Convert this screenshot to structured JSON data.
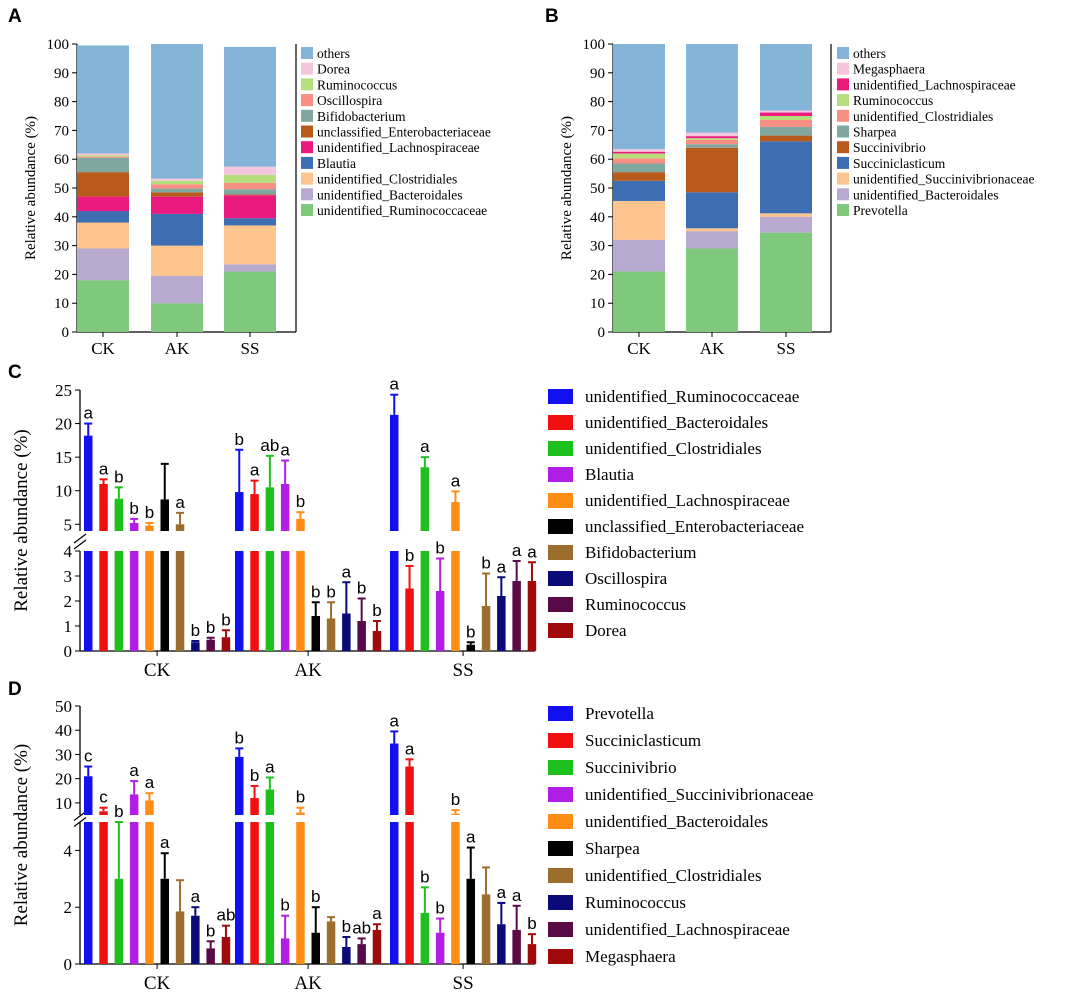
{
  "chart_data": [
    {
      "panel": "A",
      "type": "bar",
      "stacked": true,
      "categories": [
        "CK",
        "AK",
        "SS"
      ],
      "ylabel": "Relative abundance (%)",
      "ylim": [
        0,
        100
      ],
      "yticks": [
        0,
        10,
        20,
        30,
        40,
        50,
        60,
        70,
        80,
        90,
        100
      ],
      "legend_position": "right",
      "series": [
        {
          "name": "unidentified_Ruminococcaceae",
          "color": "#7ec97c",
          "values": [
            18,
            10,
            21
          ]
        },
        {
          "name": "unidentified_Bacteroidales",
          "color": "#b8a9d0",
          "values": [
            11,
            9.5,
            2.5
          ]
        },
        {
          "name": "unidentified_Clostridiales",
          "color": "#fdc48e",
          "values": [
            9,
            10.5,
            13.5
          ]
        },
        {
          "name": "Blautia",
          "color": "#3d6db3",
          "values": [
            4,
            11,
            2.5
          ]
        },
        {
          "name": "unidentified_Lachnospiraceae",
          "color": "#ea1a7f",
          "values": [
            5,
            6,
            8
          ]
        },
        {
          "name": "unclassified_Enterobacteriaceae",
          "color": "#b85a1c",
          "values": [
            8.5,
            1.5,
            0.3
          ]
        },
        {
          "name": "Bifidobacterium",
          "color": "#80a8a0",
          "values": [
            5,
            1.3,
            1.8
          ]
        },
        {
          "name": "Oscillospira",
          "color": "#f98e82",
          "values": [
            0.4,
            1.5,
            2.2
          ]
        },
        {
          "name": "Ruminococcus",
          "color": "#b7de7c",
          "values": [
            0.5,
            1.2,
            2.8
          ]
        },
        {
          "name": "Dorea",
          "color": "#f5c5dd",
          "values": [
            0.6,
            0.8,
            2.8
          ]
        },
        {
          "name": "others",
          "color": "#84b4d8",
          "values": [
            37.5,
            46.7,
            41.6
          ]
        }
      ]
    },
    {
      "panel": "B",
      "type": "bar",
      "stacked": true,
      "categories": [
        "CK",
        "AK",
        "SS"
      ],
      "ylabel": "Relative abundance (%)",
      "ylim": [
        0,
        100
      ],
      "yticks": [
        0,
        10,
        20,
        30,
        40,
        50,
        60,
        70,
        80,
        90,
        100
      ],
      "legend_position": "right",
      "series": [
        {
          "name": "Prevotella",
          "color": "#7ec97c",
          "values": [
            21,
            29,
            34.5
          ]
        },
        {
          "name": "unidentified_Bacteroidales",
          "color": "#b8a9d0",
          "values": [
            11,
            6,
            5.5
          ]
        },
        {
          "name": "unidentified_Succinivibrionaceae",
          "color": "#fdc48e",
          "values": [
            13.5,
            1,
            1.2
          ]
        },
        {
          "name": "Succiniclasticum",
          "color": "#3d6db3",
          "values": [
            7,
            12.5,
            25
          ]
        },
        {
          "name": "Succinivibrio",
          "color": "#b85a1c",
          "values": [
            3,
            15.5,
            2
          ]
        },
        {
          "name": "Sharpea",
          "color": "#80a8a0",
          "values": [
            3,
            1.2,
            3
          ]
        },
        {
          "name": "unidentified_Clostridiales",
          "color": "#f98e82",
          "values": [
            1.8,
            1.5,
            2.4
          ]
        },
        {
          "name": "Ruminococcus",
          "color": "#b7de7c",
          "values": [
            1.7,
            0.6,
            1.4
          ]
        },
        {
          "name": "unidentified_Lachnospiraceae",
          "color": "#ea1a7f",
          "values": [
            0.6,
            0.7,
            1.2
          ]
        },
        {
          "name": "Megasphaera",
          "color": "#f5c5dd",
          "values": [
            0.9,
            1.2,
            0.7
          ]
        },
        {
          "name": "others",
          "color": "#84b4d8",
          "values": [
            36.5,
            30.8,
            23.1
          ]
        }
      ]
    },
    {
      "panel": "C",
      "type": "bar",
      "broken_axis": true,
      "categories": [
        "CK",
        "AK",
        "SS"
      ],
      "ylabel": "Relative abundance (%)",
      "ylim_lower": [
        0,
        4
      ],
      "ylim_upper": [
        4,
        25
      ],
      "yticks_lower": [
        0,
        1,
        2,
        3,
        4
      ],
      "yticks_upper": [
        5,
        10,
        15,
        20,
        25
      ],
      "legend_position": "right",
      "series": [
        {
          "name": "unidentified_Ruminococcaceae",
          "color": "#1010f0",
          "values": [
            18.2,
            9.8,
            21.3
          ],
          "errors": [
            1.8,
            6.3,
            3.0
          ],
          "letters": [
            "a",
            "b",
            "a"
          ]
        },
        {
          "name": "unidentified_Bacteroidales",
          "color": "#f01010",
          "values": [
            11.0,
            9.5,
            2.5
          ],
          "errors": [
            0.7,
            2.0,
            0.9
          ],
          "letters": [
            "a",
            "a",
            "b"
          ]
        },
        {
          "name": "unidentified_Clostridiales",
          "color": "#1ec01e",
          "values": [
            8.8,
            10.5,
            13.5
          ],
          "errors": [
            1.7,
            4.7,
            1.5
          ],
          "letters": [
            "b",
            "ab",
            "a"
          ]
        },
        {
          "name": "Blautia",
          "color": "#b21ee6",
          "values": [
            5.2,
            11.0,
            2.4
          ],
          "errors": [
            0.6,
            3.5,
            1.3
          ],
          "letters": [
            "b",
            "a",
            "b"
          ]
        },
        {
          "name": "unidentified_Lachnospiraceae",
          "color": "#ff8c14",
          "values": [
            4.8,
            5.8,
            8.3
          ],
          "errors": [
            0.4,
            1.0,
            1.6
          ],
          "letters": [
            "b",
            "b",
            "a"
          ]
        },
        {
          "name": "unclassified_Enterobacteriaceae",
          "color": "#000000",
          "values": [
            8.7,
            1.4,
            0.25
          ],
          "errors": [
            5.3,
            0.55,
            0.1
          ],
          "letters": [
            "",
            "b",
            "b"
          ]
        },
        {
          "name": "Bifidobacterium",
          "color": "#9b6e2d",
          "values": [
            5.0,
            1.3,
            1.8
          ],
          "errors": [
            1.7,
            0.65,
            1.3
          ],
          "letters": [
            "a",
            "b",
            "b"
          ]
        },
        {
          "name": "Oscillospira",
          "color": "#0a0a78",
          "values": [
            0.35,
            1.5,
            2.2
          ],
          "errors": [
            0.05,
            1.25,
            0.75
          ],
          "letters": [
            "b",
            "a",
            "a"
          ]
        },
        {
          "name": "Ruminococcus",
          "color": "#5a0a46",
          "values": [
            0.45,
            1.2,
            2.8
          ],
          "errors": [
            0.08,
            0.9,
            0.8
          ],
          "letters": [
            "b",
            "b",
            "a"
          ]
        },
        {
          "name": "Dorea",
          "color": "#a00a0a",
          "values": [
            0.55,
            0.8,
            2.8
          ],
          "errors": [
            0.28,
            0.4,
            0.75
          ],
          "letters": [
            "b",
            "b",
            "a"
          ]
        }
      ]
    },
    {
      "panel": "D",
      "type": "bar",
      "broken_axis": true,
      "categories": [
        "CK",
        "AK",
        "SS"
      ],
      "ylabel": "Relative abundance (%)",
      "ylim_lower": [
        0,
        5
      ],
      "ylim_upper": [
        5,
        50
      ],
      "yticks_lower": [
        0,
        2,
        4
      ],
      "yticks_upper": [
        10,
        20,
        30,
        40,
        50
      ],
      "legend_position": "right",
      "series": [
        {
          "name": "Prevotella",
          "color": "#1010f0",
          "values": [
            21.0,
            29.0,
            34.5
          ],
          "errors": [
            4.0,
            3.5,
            5.0
          ],
          "letters": [
            "c",
            "b",
            "a"
          ]
        },
        {
          "name": "Succiniclasticum",
          "color": "#f01010",
          "values": [
            6.5,
            12.0,
            25.0
          ],
          "errors": [
            1.5,
            5.0,
            3.0
          ],
          "letters": [
            "c",
            "b",
            "a"
          ]
        },
        {
          "name": "Succinivibrio",
          "color": "#1ec01e",
          "values": [
            3.0,
            15.5,
            1.8
          ],
          "errors": [
            2.0,
            5.0,
            0.9
          ],
          "letters": [
            "b",
            "a",
            "b"
          ]
        },
        {
          "name": "unidentified_Succinivibrionaceae",
          "color": "#b21ee6",
          "values": [
            13.5,
            0.9,
            1.1
          ],
          "errors": [
            5.5,
            0.8,
            0.5
          ],
          "letters": [
            "a",
            "b",
            "b"
          ]
        },
        {
          "name": "unidentified_Bacteroidales",
          "color": "#ff8c14",
          "values": [
            11.0,
            6.0,
            5.5
          ],
          "errors": [
            3.0,
            2.0,
            1.5
          ],
          "letters": [
            "a",
            "b",
            "b"
          ]
        },
        {
          "name": "Sharpea",
          "color": "#000000",
          "values": [
            3.0,
            1.1,
            3.0
          ],
          "errors": [
            0.9,
            0.9,
            1.1
          ],
          "letters": [
            "a",
            "b",
            "a"
          ]
        },
        {
          "name": "unidentified_Clostridiales",
          "color": "#9b6e2d",
          "values": [
            1.85,
            1.5,
            2.45
          ],
          "errors": [
            1.1,
            0.15,
            0.95
          ],
          "letters": [
            "",
            "",
            ""
          ]
        },
        {
          "name": "Ruminococcus",
          "color": "#0a0a78",
          "values": [
            1.7,
            0.6,
            1.4
          ],
          "errors": [
            0.3,
            0.35,
            0.75
          ],
          "letters": [
            "a",
            "b",
            "a"
          ]
        },
        {
          "name": "unidentified_Lachnospiraceae",
          "color": "#5a0a46",
          "values": [
            0.55,
            0.7,
            1.2
          ],
          "errors": [
            0.25,
            0.2,
            0.85
          ],
          "letters": [
            "b",
            "ab",
            "a"
          ]
        },
        {
          "name": "Megasphaera",
          "color": "#a00a0a",
          "values": [
            0.95,
            1.2,
            0.7
          ],
          "errors": [
            0.4,
            0.2,
            0.35
          ],
          "letters": [
            "ab",
            "a",
            "b"
          ]
        }
      ]
    }
  ]
}
